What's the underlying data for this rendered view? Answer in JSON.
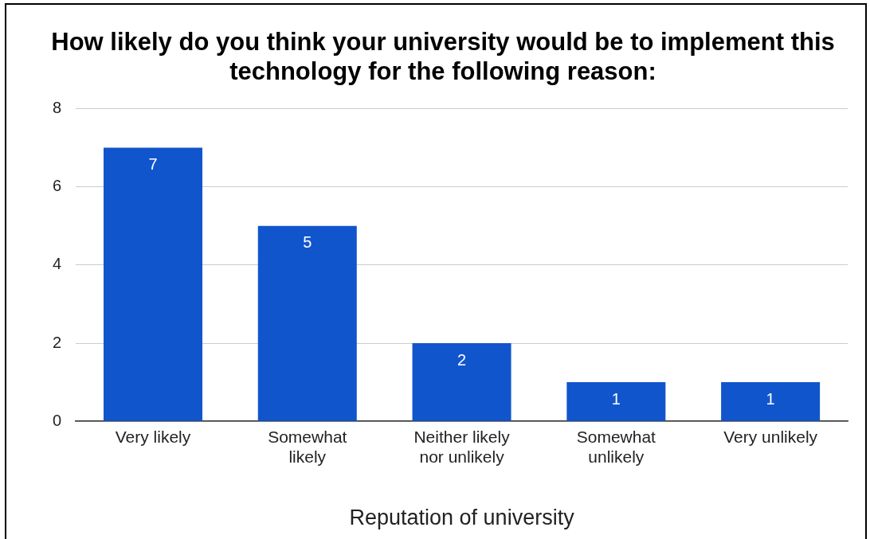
{
  "chart_data": {
    "type": "bar",
    "title": "How likely do you think your university would be to implement this technology for the following reason:",
    "xlabel": "Reputation of university",
    "categories": [
      "Very likely",
      "Somewhat likely",
      "Neither likely nor unlikely",
      "Somewhat unlikely",
      "Very unlikely"
    ],
    "values": [
      7,
      5,
      2,
      1,
      1
    ],
    "color": "#1155cc",
    "ylim": [
      0,
      8
    ],
    "yticks": [
      0,
      2,
      4,
      6,
      8
    ],
    "grid": "y",
    "data_labels": true,
    "legend": false
  }
}
